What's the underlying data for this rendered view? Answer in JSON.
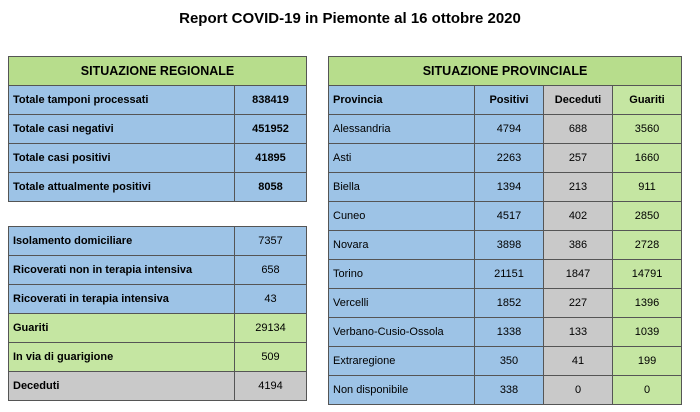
{
  "title": "Report COVID-19 in Piemonte al 16 ottobre 2020",
  "regional": {
    "header": "SITUAZIONE REGIONALE",
    "rows": [
      {
        "label": "Totale tamponi processati",
        "value": "838419"
      },
      {
        "label": "Totale casi negativi",
        "value": "451952"
      },
      {
        "label": "Totale casi positivi",
        "value": "41895"
      },
      {
        "label": "Totale attualmente positivi",
        "value": "8058"
      }
    ]
  },
  "details": {
    "rows": [
      {
        "label": "Isolamento domiciliare",
        "value": "7357"
      },
      {
        "label": "Ricoverati non in terapia intensiva",
        "value": "658"
      },
      {
        "label": "Ricoverati in terapia intensiva",
        "value": "43"
      },
      {
        "label": "Guariti",
        "value": "29134"
      },
      {
        "label": "In via di guarigione",
        "value": "509"
      },
      {
        "label": "Deceduti",
        "value": "4194"
      }
    ]
  },
  "provincial": {
    "header": "SITUAZIONE PROVINCIALE",
    "columns": [
      "Provincia",
      "Positivi",
      "Deceduti",
      "Guariti"
    ],
    "rows": [
      {
        "name": "Alessandria",
        "positivi": "4794",
        "deceduti": "688",
        "guariti": "3560"
      },
      {
        "name": "Asti",
        "positivi": "2263",
        "deceduti": "257",
        "guariti": "1660"
      },
      {
        "name": "Biella",
        "positivi": "1394",
        "deceduti": "213",
        "guariti": "911"
      },
      {
        "name": "Cuneo",
        "positivi": "4517",
        "deceduti": "402",
        "guariti": "2850"
      },
      {
        "name": "Novara",
        "positivi": "3898",
        "deceduti": "386",
        "guariti": "2728"
      },
      {
        "name": "Torino",
        "positivi": "21151",
        "deceduti": "1847",
        "guariti": "14791"
      },
      {
        "name": "Vercelli",
        "positivi": "1852",
        "deceduti": "227",
        "guariti": "1396"
      },
      {
        "name": "Verbano-Cusio-Ossola",
        "positivi": "1338",
        "deceduti": "133",
        "guariti": "1039"
      },
      {
        "name": "Extraregione",
        "positivi": "350",
        "deceduti": "41",
        "guariti": "199"
      },
      {
        "name": "Non disponibile",
        "positivi": "338",
        "deceduti": "0",
        "guariti": "0"
      }
    ]
  },
  "colors": {
    "header_green": "#b7dd8c",
    "blue": "#9dc3e6",
    "green": "#c5e6a2",
    "grey": "#c9c9c9"
  }
}
